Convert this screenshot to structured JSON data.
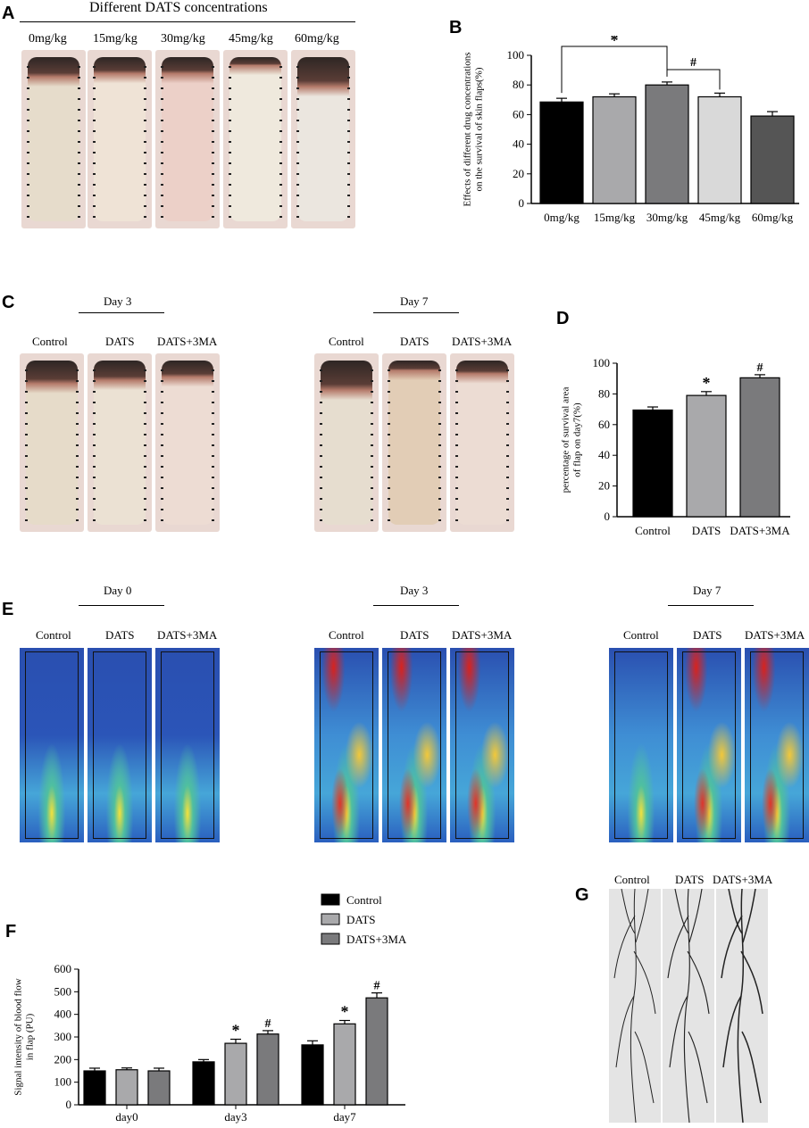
{
  "panels": {
    "a": "A",
    "b": "B",
    "c": "C",
    "d": "D",
    "e": "E",
    "f": "F",
    "g": "G"
  },
  "panel_a": {
    "header": "Different DATS concentrations",
    "groups": [
      "0mg/kg",
      "15mg/kg",
      "30mg/kg",
      "45mg/kg",
      "60mg/kg"
    ]
  },
  "panel_c": {
    "day3": "Day 3",
    "day7": "Day 7",
    "groups": [
      "Control",
      "DATS",
      "DATS+3MA"
    ]
  },
  "panel_e": {
    "day0": "Day 0",
    "day3": "Day 3",
    "day7": "Day 7",
    "groups": [
      "Control",
      "DATS",
      "DATS+3MA"
    ]
  },
  "panel_g": {
    "groups": [
      "Control",
      "DATS",
      "DATS+3MA"
    ]
  },
  "colors": {
    "black": "#000000",
    "light_gray": "#a9a9ab",
    "mid_gray": "#7a7a7c",
    "pale_gray": "#d9d9d9",
    "dark_gray": "#555555",
    "skin": "#e9cfc8",
    "fur": "#ece4d6",
    "necrosis": "#2e2624",
    "laser_bg": "#2a4fb0",
    "vessel": "#222222"
  },
  "chart_data": [
    {
      "id": "B",
      "type": "bar",
      "categories": [
        "0mg/kg",
        "15mg/kg",
        "30mg/kg",
        "45mg/kg",
        "60mg/kg"
      ],
      "values": [
        68.5,
        72,
        80,
        72,
        59
      ],
      "errors": [
        2.5,
        2,
        2,
        2.5,
        3
      ],
      "colors": [
        "#000000",
        "#a9a9ab",
        "#7a7a7c",
        "#d9d9d9",
        "#555555"
      ],
      "ylabel": "Effects of different drug concentrations\non the survival of skin flaps(%)",
      "ylim": [
        0,
        100
      ],
      "yticks": [
        0,
        20,
        40,
        60,
        80,
        100
      ],
      "grid": false,
      "annotations": [
        {
          "symbol": "*",
          "from": "0mg/kg",
          "to": "30mg/kg"
        },
        {
          "symbol": "#",
          "from": "30mg/kg",
          "to": "45mg/kg"
        }
      ]
    },
    {
      "id": "D",
      "type": "bar",
      "categories": [
        "Control",
        "DATS",
        "DATS+3MA"
      ],
      "values": [
        69.5,
        79,
        90.5
      ],
      "errors": [
        2,
        2.5,
        2
      ],
      "colors": [
        "#000000",
        "#a9a9ab",
        "#7a7a7c"
      ],
      "ylabel": "percentage of survival area\nof flap on day7(%)",
      "ylim": [
        0,
        100
      ],
      "yticks": [
        0,
        20,
        40,
        60,
        80,
        100
      ],
      "grid": false,
      "markers": [
        "",
        "*",
        "#"
      ]
    },
    {
      "id": "F",
      "type": "bar",
      "categories": [
        "day0",
        "day3",
        "day7"
      ],
      "series": [
        {
          "name": "Control",
          "values": [
            150,
            190,
            265
          ],
          "errors": [
            12,
            10,
            18
          ],
          "color": "#000000"
        },
        {
          "name": "DATS",
          "values": [
            155,
            272,
            358
          ],
          "errors": [
            8,
            18,
            15
          ],
          "color": "#a9a9ab"
        },
        {
          "name": "DATS+3MA",
          "values": [
            150,
            313,
            473
          ],
          "errors": [
            12,
            15,
            22
          ],
          "color": "#7a7a7c"
        }
      ],
      "markers": [
        [
          "",
          "",
          ""
        ],
        [
          "",
          "*",
          "#"
        ],
        [
          "",
          "*",
          "#"
        ]
      ],
      "ylabel": "Signal intensity of blood flow\nin flap (PU)",
      "ylim": [
        0,
        600
      ],
      "yticks": [
        0,
        100,
        200,
        300,
        400,
        500,
        600
      ],
      "legend": "top-right",
      "grid": false
    }
  ]
}
